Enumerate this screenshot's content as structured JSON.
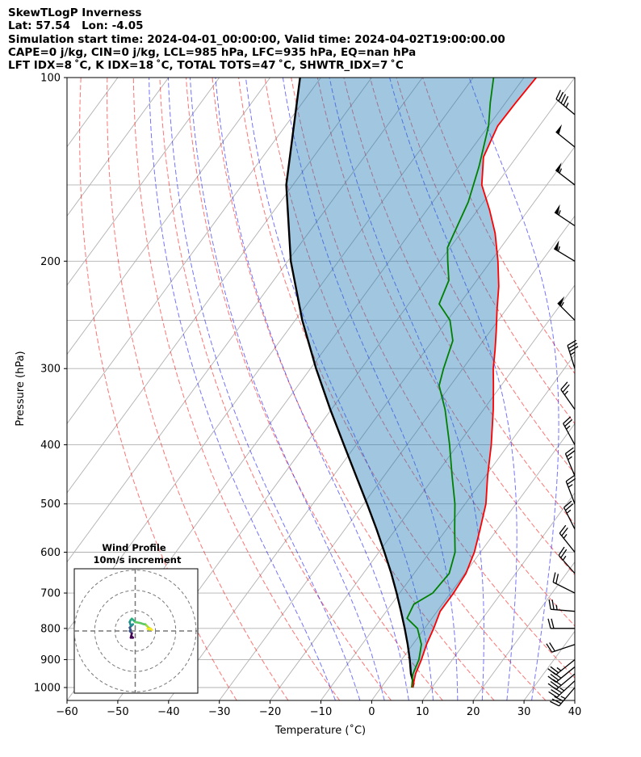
{
  "header": {
    "line1": "SkewTLogP Inverness",
    "line2": "Lat: 57.54   Lon: -4.05",
    "line3": "Simulation start time: 2024-04-01_00:00:00, Valid time: 2024-04-02T19:00:00.00",
    "line4": "CAPE=0 j/kg, CIN=0 j/kg, LCL=985 hPa, LFC=935 hPa, EQ=nan hPa",
    "line5": "LFT IDX=8 ˚C, K IDX=18 ˚C, TOTAL TOTS=47 ˚C, SHWTR_IDX=7 ˚C"
  },
  "chart_data": {
    "type": "skewt",
    "xlabel": "Temperature (˚C)",
    "ylabel": "Pressure (hPa)",
    "xlim": [
      -60,
      40
    ],
    "ylim": [
      1050,
      100
    ],
    "xticks": [
      -60,
      -50,
      -40,
      -30,
      -20,
      -10,
      0,
      10,
      20,
      30,
      40
    ],
    "xtick_labels": [
      "−60",
      "−50",
      "−40",
      "−30",
      "−20",
      "−10",
      "0",
      "10",
      "20",
      "30",
      "40"
    ],
    "yticks": [
      100,
      200,
      300,
      400,
      500,
      600,
      700,
      800,
      900,
      1000
    ],
    "yticks_minor": [
      100,
      150,
      200,
      250,
      300,
      400,
      500,
      600,
      700,
      800,
      900,
      1000
    ],
    "temperature": {
      "name": "Temperature",
      "color": "#ff0000",
      "points": [
        [
          1000,
          6.2
        ],
        [
          950,
          4.8
        ],
        [
          900,
          3.9
        ],
        [
          850,
          2.7
        ],
        [
          800,
          1.8
        ],
        [
          750,
          0.6
        ],
        [
          700,
          0.6
        ],
        [
          650,
          0.2
        ],
        [
          600,
          -1.2
        ],
        [
          550,
          -3.4
        ],
        [
          500,
          -5.9
        ],
        [
          450,
          -9.6
        ],
        [
          400,
          -13.4
        ],
        [
          350,
          -18.1
        ],
        [
          320,
          -21.5
        ],
        [
          300,
          -24.0
        ],
        [
          280,
          -26.3
        ],
        [
          260,
          -28.9
        ],
        [
          240,
          -31.8
        ],
        [
          220,
          -34.8
        ],
        [
          200,
          -38.6
        ],
        [
          180,
          -43.2
        ],
        [
          165,
          -47.6
        ],
        [
          150,
          -52.8
        ],
        [
          135,
          -56.5
        ],
        [
          120,
          -58.2
        ],
        [
          110,
          -58.0
        ],
        [
          100,
          -57.6
        ]
      ]
    },
    "dewpoint": {
      "name": "Dewpoint",
      "color": "#008000",
      "points": [
        [
          1000,
          6.0
        ],
        [
          950,
          4.3
        ],
        [
          900,
          3.4
        ],
        [
          850,
          1.7
        ],
        [
          800,
          -1.4
        ],
        [
          770,
          -4.9
        ],
        [
          730,
          -5.6
        ],
        [
          700,
          -3.5
        ],
        [
          650,
          -3.1
        ],
        [
          600,
          -5.0
        ],
        [
          550,
          -8.4
        ],
        [
          500,
          -12.0
        ],
        [
          450,
          -16.6
        ],
        [
          400,
          -21.6
        ],
        [
          350,
          -27.6
        ],
        [
          320,
          -32.2
        ],
        [
          300,
          -33.8
        ],
        [
          270,
          -36.0
        ],
        [
          250,
          -39.5
        ],
        [
          235,
          -44.0
        ],
        [
          215,
          -45.5
        ],
        [
          200,
          -48.5
        ],
        [
          190,
          -50.5
        ],
        [
          160,
          -53.0
        ],
        [
          140,
          -56.0
        ],
        [
          120,
          -60.0
        ],
        [
          110,
          -63.0
        ],
        [
          100,
          -66.0
        ]
      ]
    },
    "parcel": {
      "name": "Parcel profile",
      "color": "#000000",
      "points": [
        [
          1000,
          6.2
        ],
        [
          985,
          5.8
        ],
        [
          950,
          3.9
        ],
        [
          900,
          1.6
        ],
        [
          850,
          -1.0
        ],
        [
          800,
          -3.9
        ],
        [
          750,
          -7.1
        ],
        [
          700,
          -10.6
        ],
        [
          650,
          -14.5
        ],
        [
          600,
          -18.9
        ],
        [
          550,
          -23.8
        ],
        [
          500,
          -29.3
        ],
        [
          450,
          -35.5
        ],
        [
          400,
          -42.4
        ],
        [
          350,
          -50.2
        ],
        [
          300,
          -58.9
        ],
        [
          250,
          -68.6
        ],
        [
          200,
          -79.4
        ],
        [
          150,
          -91.3
        ],
        [
          100,
          -104.1
        ]
      ]
    },
    "shading": "region between parcel and temperature shaded blue (CIN area)",
    "dry_adiabats_C": [
      -30,
      -20,
      -10,
      0,
      10,
      20,
      30,
      40,
      50,
      60,
      70,
      80,
      90,
      100
    ],
    "moist_adiabats_C": [
      -10,
      -5,
      0,
      5,
      10,
      15,
      20,
      25,
      30
    ],
    "mixing_ratios": [
      0.5,
      1,
      2,
      4,
      7,
      10,
      16,
      24
    ],
    "isotherms_C": [
      -150,
      -140,
      -130,
      -120,
      -110,
      -100,
      -90,
      -80,
      -70,
      -60,
      -50,
      -40,
      -30,
      -20,
      -10,
      0,
      10,
      20,
      30,
      40
    ],
    "wind_barbs": [
      {
        "p": 1000,
        "u": 12,
        "v": 14
      },
      {
        "p": 975,
        "u": 13,
        "v": 12
      },
      {
        "p": 950,
        "u": 12,
        "v": 10
      },
      {
        "p": 925,
        "u": 11,
        "v": 9
      },
      {
        "p": 900,
        "u": 10,
        "v": 8
      },
      {
        "p": 850,
        "u": 9,
        "v": 3
      },
      {
        "p": 800,
        "u": 10,
        "v": 0
      },
      {
        "p": 750,
        "u": 12,
        "v": -1
      },
      {
        "p": 700,
        "u": 10,
        "v": -5
      },
      {
        "p": 650,
        "u": 8,
        "v": -9
      },
      {
        "p": 600,
        "u": 8,
        "v": -10
      },
      {
        "p": 550,
        "u": 6,
        "v": -12
      },
      {
        "p": 500,
        "u": 5,
        "v": -13
      },
      {
        "p": 450,
        "u": 5,
        "v": -12
      },
      {
        "p": 400,
        "u": 6,
        "v": -11
      },
      {
        "p": 350,
        "u": 7,
        "v": -10
      },
      {
        "p": 300,
        "u": 5,
        "v": -16
      },
      {
        "p": 250,
        "u": 20,
        "v": -20
      },
      {
        "p": 200,
        "u": 25,
        "v": -15
      },
      {
        "p": 175,
        "u": 24,
        "v": -16
      },
      {
        "p": 150,
        "u": 22,
        "v": -17
      },
      {
        "p": 130,
        "u": 20,
        "v": -16
      },
      {
        "p": 115,
        "u": 18,
        "v": -15
      }
    ],
    "inset": {
      "title_line1": "Wind Profile",
      "title_line2": "10m/s increment",
      "rings_ms": [
        10,
        20,
        30
      ],
      "hodograph": [
        [
          -3,
          -5
        ],
        [
          -2,
          -6
        ],
        [
          -4,
          -6
        ],
        [
          -3,
          -2
        ],
        [
          -4,
          -1
        ],
        [
          -5,
          0
        ],
        [
          -4,
          1
        ],
        [
          -5,
          3
        ],
        [
          -2,
          6
        ],
        [
          -3,
          5
        ],
        [
          -4,
          5
        ],
        [
          -5,
          8
        ],
        [
          -4,
          10
        ],
        [
          -3,
          11
        ],
        [
          -2,
          10
        ],
        [
          0,
          8
        ],
        [
          5,
          7
        ],
        [
          8,
          6
        ],
        [
          9,
          6
        ],
        [
          10,
          5
        ],
        [
          12,
          3
        ],
        [
          14,
          2
        ],
        [
          13,
          1
        ],
        [
          11,
          2
        ],
        [
          14,
          2
        ],
        [
          15,
          1
        ],
        [
          13,
          2
        ]
      ]
    }
  }
}
